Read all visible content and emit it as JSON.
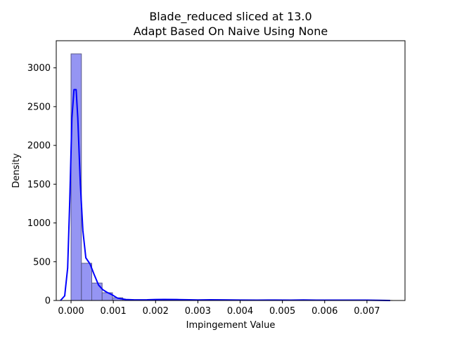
{
  "chart_data": {
    "type": "bar",
    "title": [
      "Blade_reduced sliced at 13.0",
      "Adapt Based On Naive   Using None"
    ],
    "xlabel": "Impingement Value",
    "ylabel": "Density",
    "xlim": [
      -0.00035,
      0.0079
    ],
    "ylim": [
      0,
      3350
    ],
    "xticks": [
      {
        "value": 0.0,
        "label": "0.000"
      },
      {
        "value": 0.001,
        "label": "0.001"
      },
      {
        "value": 0.002,
        "label": "0.002"
      },
      {
        "value": 0.003,
        "label": "0.003"
      },
      {
        "value": 0.004,
        "label": "0.004"
      },
      {
        "value": 0.005,
        "label": "0.005"
      },
      {
        "value": 0.006,
        "label": "0.006"
      },
      {
        "value": 0.007,
        "label": "0.007"
      }
    ],
    "yticks": [
      {
        "value": 0,
        "label": "0"
      },
      {
        "value": 500,
        "label": "500"
      },
      {
        "value": 1000,
        "label": "1000"
      },
      {
        "value": 1500,
        "label": "1500"
      },
      {
        "value": 2000,
        "label": "2000"
      },
      {
        "value": 2500,
        "label": "2500"
      },
      {
        "value": 3000,
        "label": "3000"
      }
    ],
    "grid": false,
    "histogram": {
      "bin_width": 0.000245,
      "bin_start": 0.0,
      "color": "#7b7bf0",
      "edge_color": "#5a5a8a",
      "densities": [
        3180,
        480,
        225,
        100,
        35,
        12,
        6,
        4,
        3,
        5,
        8,
        9,
        6,
        4,
        3,
        2,
        3,
        5,
        4,
        3,
        2,
        1,
        2,
        2,
        1,
        2,
        3,
        2,
        1,
        1,
        1
      ]
    },
    "kde": {
      "color": "#0000ff",
      "x": [
        -0.00025,
        -0.00015,
        -8e-05,
        -3e-05,
        2e-05,
        7e-05,
        0.00012,
        0.00016,
        0.00022,
        0.00028,
        0.00035,
        0.00045,
        0.00055,
        0.00065,
        0.00075,
        0.00085,
        0.00095,
        0.0011,
        0.0013,
        0.0015,
        0.0018,
        0.002,
        0.0022,
        0.0025,
        0.0028,
        0.003,
        0.0033,
        0.0036,
        0.004,
        0.0044,
        0.0048,
        0.0052,
        0.0055,
        0.0058,
        0.0062,
        0.0066,
        0.007,
        0.0073,
        0.00755
      ],
      "y": [
        0,
        60,
        420,
        1300,
        2350,
        2720,
        2720,
        2350,
        1500,
        900,
        550,
        470,
        330,
        200,
        140,
        105,
        80,
        30,
        12,
        8,
        9,
        12,
        14,
        12,
        9,
        7,
        9,
        8,
        6,
        5,
        6,
        5,
        7,
        5,
        4,
        5,
        4,
        2,
        0
      ]
    }
  }
}
